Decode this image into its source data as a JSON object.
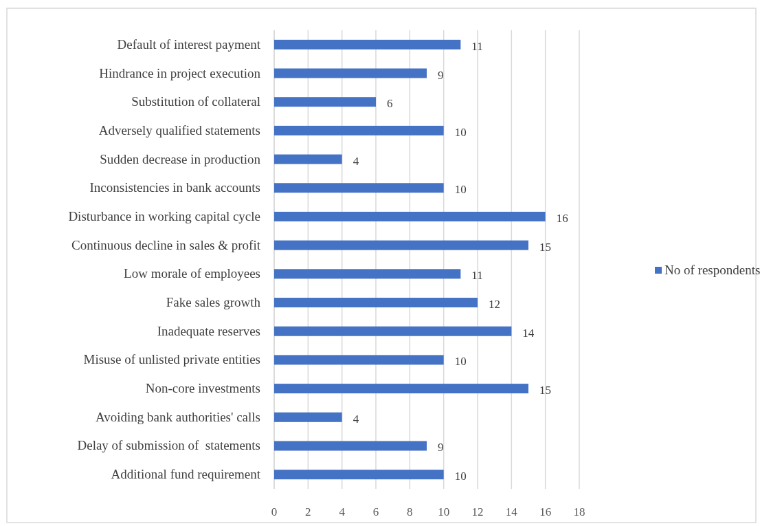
{
  "chart_data": {
    "type": "bar",
    "orientation": "horizontal",
    "categories": [
      "Default of interest payment",
      "Hindrance in project execution",
      "Substitution of collateral",
      "Adversely qualified statements",
      "Sudden decrease in production",
      "Inconsistencies in bank accounts",
      "Disturbance in working capital cycle",
      "Continuous decline in sales & profit",
      "Low morale of employees",
      "Fake sales growth",
      "Inadequate reserves",
      "Misuse of unlisted private entities",
      "Non-core investments",
      "Avoiding bank authorities' calls",
      "Delay of submission of  statements",
      "Additional fund requirement"
    ],
    "series": [
      {
        "name": "No of respondents",
        "color": "#4472c4",
        "values": [
          11,
          9,
          6,
          10,
          4,
          10,
          16,
          15,
          11,
          12,
          14,
          10,
          15,
          4,
          9,
          10
        ]
      }
    ],
    "xlim": [
      0,
      18
    ],
    "xticks": [
      0,
      2,
      4,
      6,
      8,
      10,
      12,
      14,
      16,
      18
    ],
    "grid": "x",
    "legend": "right",
    "data_labels": true
  }
}
